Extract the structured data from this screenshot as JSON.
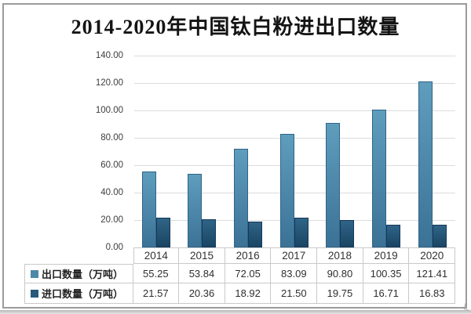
{
  "title": "2014-2020年中国钛白粉进出口数量",
  "chart_data": {
    "type": "bar",
    "title": "2014-2020年中国钛白粉进出口数量",
    "categories": [
      "2014",
      "2015",
      "2016",
      "2017",
      "2018",
      "2019",
      "2020"
    ],
    "series": [
      {
        "name": "出口数量（万吨）",
        "values": [
          55.25,
          53.84,
          72.05,
          83.09,
          90.8,
          100.35,
          121.41
        ],
        "color": "#4d88aa",
        "color_top": "#5f9dbd",
        "color_bottom": "#3b7296",
        "border_color": "#2f6488"
      },
      {
        "name": "进口数量（万吨）",
        "values": [
          21.57,
          20.36,
          18.92,
          21.5,
          19.75,
          16.71,
          16.83
        ],
        "color": "#28597b",
        "color_top": "#2f6487",
        "color_bottom": "#1a4563",
        "border_color": "#15395a"
      }
    ],
    "ylim": [
      0,
      140
    ],
    "y_tick_step": 20,
    "y_ticks": [
      "140.00",
      "120.00",
      "100.00",
      "80.00",
      "60.00",
      "40.00",
      "20.00",
      "0.00"
    ],
    "grid": "horizontal",
    "legend_position": "table-rows-left",
    "xlabel": "",
    "ylabel": ""
  },
  "table": {
    "years": [
      "2014",
      "2015",
      "2016",
      "2017",
      "2018",
      "2019",
      "2020"
    ],
    "rows": [
      {
        "label": "出口数量（万吨）",
        "values": [
          "55.25",
          "53.84",
          "72.05",
          "83.09",
          "90.80",
          "100.35",
          "121.41"
        ]
      },
      {
        "label": "进口数量（万吨）",
        "values": [
          "21.57",
          "20.36",
          "18.92",
          "21.50",
          "19.75",
          "16.71",
          "16.83"
        ]
      }
    ]
  },
  "colors": {
    "frame_border": "#9b9b9b",
    "gridline": "#dcdcdc",
    "table_border": "#c9c9c9",
    "title_text": "#141414",
    "tick_text": "#3d3d3d"
  }
}
